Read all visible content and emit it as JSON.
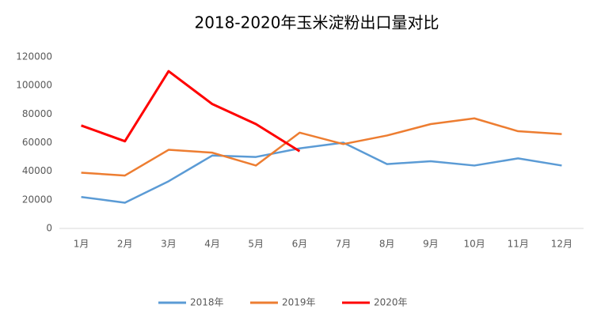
{
  "chart_data": {
    "type": "line",
    "title": "2018-2020年玉米淀粉出口量对比",
    "categories": [
      "1月",
      "2月",
      "3月",
      "4月",
      "5月",
      "6月",
      "7月",
      "8月",
      "9月",
      "10月",
      "11月",
      "12月"
    ],
    "series": [
      {
        "name": "2018年",
        "color": "#5b9bd5",
        "values": [
          22000,
          18000,
          33000,
          51000,
          50000,
          56000,
          60000,
          45000,
          47000,
          44000,
          49000,
          44000
        ]
      },
      {
        "name": "2019年",
        "color": "#ed7d31",
        "values": [
          39000,
          37000,
          55000,
          53000,
          44000,
          67000,
          59000,
          65000,
          73000,
          77000,
          68000,
          66000
        ]
      },
      {
        "name": "2020年",
        "color": "#ff0000",
        "values": [
          72000,
          61000,
          110000,
          87000,
          73000,
          54000,
          null,
          null,
          null,
          null,
          null,
          null
        ]
      }
    ],
    "ylim": [
      0,
      120000
    ],
    "yticks": [
      0,
      20000,
      40000,
      60000,
      80000,
      100000,
      120000
    ],
    "grid": false,
    "legend": "bottom"
  }
}
